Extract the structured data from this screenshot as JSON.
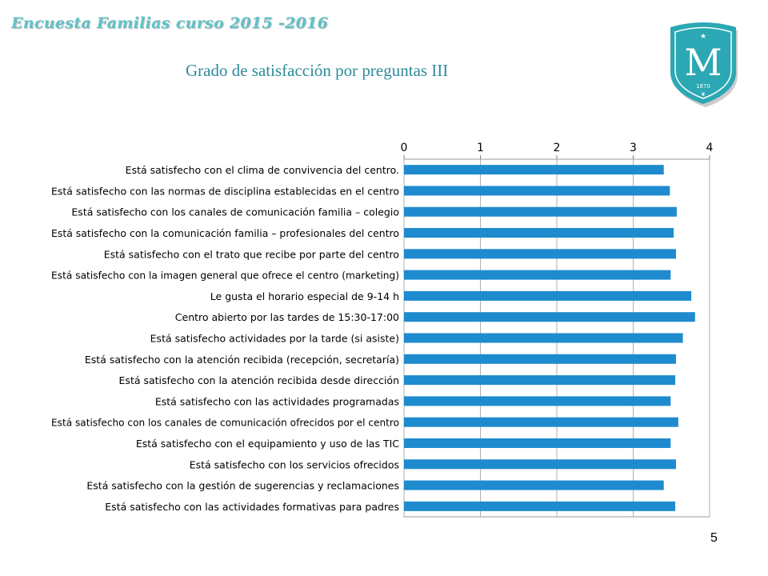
{
  "header": {
    "survey_title": "Encuesta Familias curso 2015 -2016"
  },
  "slide": {
    "title": "Grado de satisfacción por preguntas III",
    "page_number": "5"
  },
  "logo": {
    "letter": "M",
    "year": "1870"
  },
  "colors": {
    "bar": "#1e8bcf",
    "title": "#2e8b9a",
    "header": "#5fc3c8",
    "shield": "#2ba8b3"
  },
  "chart_data": {
    "type": "bar",
    "orientation": "horizontal",
    "title": "",
    "xlabel": "",
    "ylabel": "",
    "xlim": [
      0,
      4
    ],
    "x_ticks": [
      "0",
      "1",
      "2",
      "3",
      "4"
    ],
    "grid": true,
    "x_axis_position": "top",
    "categories": [
      "Está satisfecho con el clima de convivencia del centro.",
      "Está satisfecho con las normas de disciplina establecidas en el centro",
      "Está satisfecho con los canales de comunicación familia – colegio",
      "Está satisfecho con la comunicación familia – profesionales  del centro",
      "Está satisfecho con el trato que recibe por parte del centro",
      "Está satisfecho con la imagen general que ofrece el centro (marketing)",
      "Le gusta el horario especial de 9-14 h",
      "Centro abierto por las tardes de 15:30-17:00",
      "Está satisfecho actividades por la tarde (si asiste)",
      "Está satisfecho con la atención recibida (recepción, secretaría)",
      "Está satisfecho con la atención recibida desde dirección",
      "Está satisfecho con las actividades programadas",
      "Está satisfecho con los canales de comunicación ofrecidos por el centro",
      "Está satisfecho con el equipamiento y uso de las TIC",
      "Está satisfecho con los servicios ofrecidos",
      "Está satisfecho con la gestión de sugerencias y reclamaciones",
      "Está satisfecho con las actividades formativas para padres"
    ],
    "values": [
      3.4,
      3.48,
      3.57,
      3.53,
      3.56,
      3.49,
      3.76,
      3.81,
      3.65,
      3.56,
      3.55,
      3.49,
      3.59,
      3.49,
      3.56,
      3.4,
      3.55
    ]
  }
}
